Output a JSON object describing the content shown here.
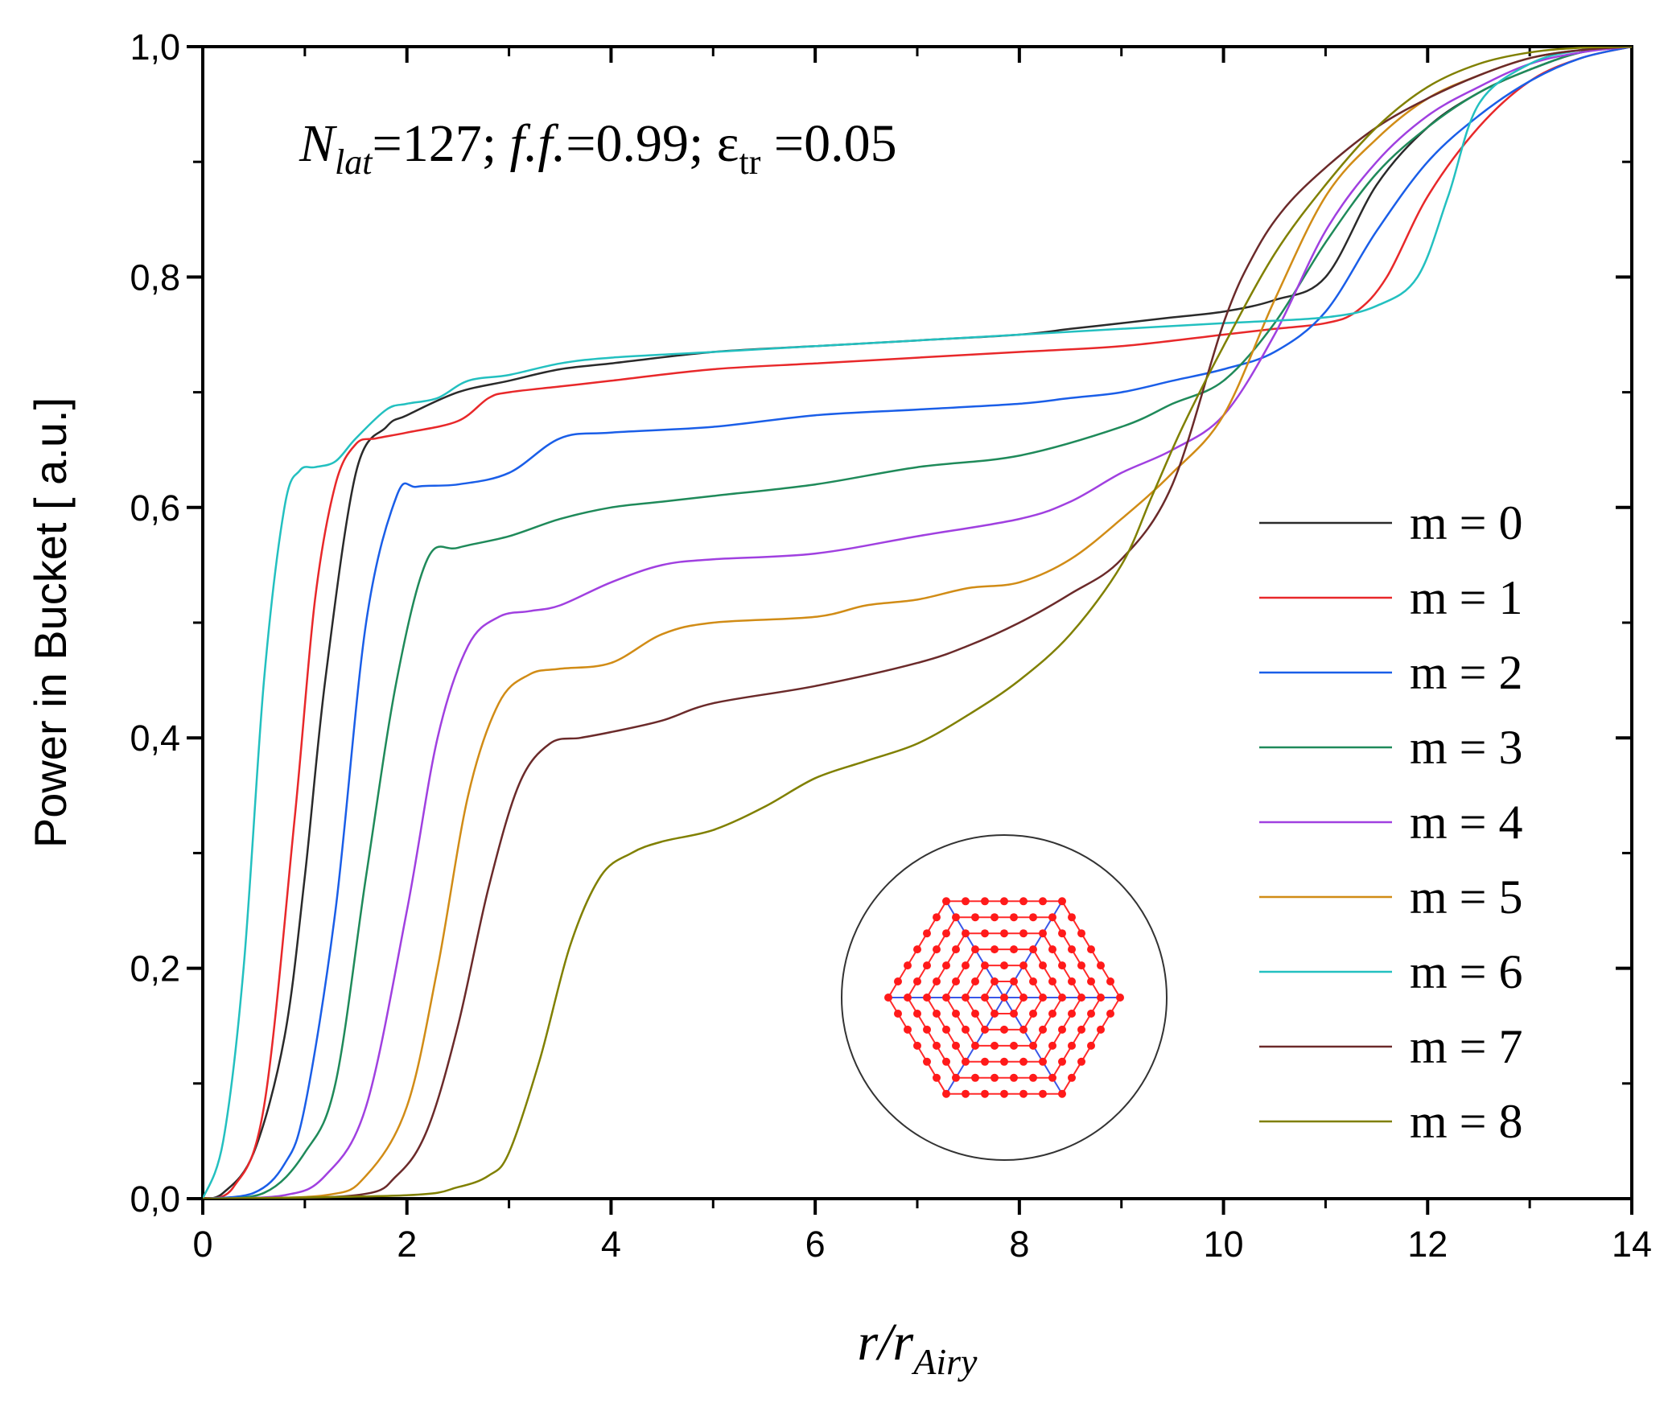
{
  "chart_data": {
    "type": "line",
    "annotation": {
      "n_prefix": "N",
      "n_sub": "lat",
      "n_value": "=127; ",
      "ff_label": "f.f.",
      "ff_value": "=0.99; ",
      "eps_symbol": "ε",
      "eps_sub": "tr",
      "eps_value": " =0.05"
    },
    "xlabel": {
      "main": "r/r",
      "sub": "Airy"
    },
    "ylabel": "Power in Bucket [ a.u.]",
    "xlim": [
      0,
      14
    ],
    "ylim": [
      0,
      1.0
    ],
    "x_ticks": [
      0,
      2,
      4,
      6,
      8,
      10,
      12,
      14
    ],
    "x_tick_labels": [
      "0",
      "2",
      "4",
      "6",
      "8",
      "10",
      "12",
      "14"
    ],
    "y_ticks": [
      0,
      0.2,
      0.4,
      0.6,
      0.8,
      1.0
    ],
    "y_tick_labels": [
      "0,0",
      "0,2",
      "0,4",
      "0,6",
      "0,8",
      "1,0"
    ],
    "legend_position": "right",
    "series": [
      {
        "name": "m = 0",
        "color": "#2a2a2a",
        "x": [
          0,
          0.2,
          0.5,
          0.8,
          1.0,
          1.2,
          1.5,
          1.8,
          2.0,
          2.5,
          3.0,
          3.5,
          4.0,
          5.0,
          6.0,
          7.0,
          8.0,
          8.5,
          9.0,
          9.5,
          10.0,
          10.5,
          11.0,
          11.5,
          12.0,
          12.5,
          13.0,
          13.5,
          14.0
        ],
        "y": [
          0,
          0.005,
          0.04,
          0.14,
          0.28,
          0.45,
          0.63,
          0.67,
          0.68,
          0.7,
          0.71,
          0.72,
          0.725,
          0.735,
          0.74,
          0.745,
          0.75,
          0.755,
          0.76,
          0.765,
          0.77,
          0.78,
          0.8,
          0.88,
          0.93,
          0.96,
          0.98,
          0.995,
          1.0
        ]
      },
      {
        "name": "m = 1",
        "color": "#e8282a",
        "x": [
          0,
          0.3,
          0.6,
          0.9,
          1.1,
          1.3,
          1.5,
          1.7,
          2.0,
          2.5,
          2.8,
          3.0,
          3.5,
          4.0,
          5.0,
          6.0,
          7.0,
          8.0,
          9.0,
          10.0,
          10.5,
          11.0,
          11.3,
          11.6,
          12.0,
          12.5,
          13.0,
          13.5,
          14.0
        ],
        "y": [
          0,
          0.01,
          0.08,
          0.33,
          0.52,
          0.62,
          0.655,
          0.66,
          0.665,
          0.675,
          0.695,
          0.7,
          0.705,
          0.71,
          0.72,
          0.725,
          0.73,
          0.735,
          0.74,
          0.75,
          0.755,
          0.76,
          0.77,
          0.8,
          0.87,
          0.93,
          0.97,
          0.99,
          1.0
        ]
      },
      {
        "name": "m = 2",
        "color": "#1a5ee8",
        "x": [
          0,
          0.5,
          0.8,
          1.0,
          1.3,
          1.6,
          1.9,
          2.1,
          2.5,
          3.0,
          3.5,
          4.0,
          5.0,
          6.0,
          7.0,
          8.0,
          8.5,
          9.0,
          9.5,
          10.0,
          10.5,
          11.0,
          11.5,
          12.0,
          12.5,
          13.0,
          13.5,
          14.0
        ],
        "y": [
          0,
          0.005,
          0.03,
          0.08,
          0.25,
          0.5,
          0.61,
          0.618,
          0.62,
          0.63,
          0.66,
          0.665,
          0.67,
          0.68,
          0.685,
          0.69,
          0.695,
          0.7,
          0.71,
          0.72,
          0.735,
          0.77,
          0.84,
          0.9,
          0.94,
          0.97,
          0.99,
          1.0
        ]
      },
      {
        "name": "m = 3",
        "color": "#1f8a5a",
        "x": [
          0,
          0.6,
          1.0,
          1.3,
          1.6,
          1.9,
          2.2,
          2.5,
          3.0,
          3.5,
          4.0,
          4.5,
          5.0,
          6.0,
          7.0,
          8.0,
          9.0,
          9.5,
          10.0,
          10.5,
          11.0,
          11.5,
          12.0,
          12.5,
          13.0,
          13.5,
          14.0
        ],
        "y": [
          0,
          0.005,
          0.04,
          0.1,
          0.28,
          0.45,
          0.555,
          0.565,
          0.575,
          0.59,
          0.6,
          0.605,
          0.61,
          0.62,
          0.635,
          0.645,
          0.67,
          0.69,
          0.71,
          0.76,
          0.83,
          0.89,
          0.93,
          0.96,
          0.98,
          0.995,
          1.0
        ]
      },
      {
        "name": "m = 4",
        "color": "#a040e0",
        "x": [
          0,
          0.8,
          1.2,
          1.6,
          2.0,
          2.3,
          2.6,
          2.9,
          3.2,
          3.5,
          4.0,
          4.5,
          5.0,
          6.0,
          7.0,
          8.0,
          8.5,
          9.0,
          9.5,
          10.0,
          10.5,
          11.0,
          11.5,
          12.0,
          12.5,
          13.0,
          13.5,
          14.0
        ],
        "y": [
          0,
          0.003,
          0.02,
          0.08,
          0.25,
          0.4,
          0.48,
          0.505,
          0.51,
          0.515,
          0.535,
          0.55,
          0.555,
          0.56,
          0.575,
          0.59,
          0.605,
          0.63,
          0.65,
          0.68,
          0.75,
          0.84,
          0.9,
          0.94,
          0.965,
          0.985,
          0.995,
          1.0
        ]
      },
      {
        "name": "m = 5",
        "color": "#d18c16",
        "x": [
          0,
          1.2,
          1.6,
          2.0,
          2.3,
          2.6,
          2.9,
          3.2,
          3.5,
          4.0,
          4.5,
          5.0,
          6.0,
          6.5,
          7.0,
          7.5,
          8.0,
          8.5,
          9.0,
          9.5,
          10.0,
          10.5,
          11.0,
          11.5,
          12.0,
          12.5,
          13.0,
          13.5,
          14.0
        ],
        "y": [
          0,
          0.003,
          0.02,
          0.08,
          0.2,
          0.35,
          0.43,
          0.455,
          0.46,
          0.465,
          0.49,
          0.5,
          0.505,
          0.515,
          0.52,
          0.53,
          0.535,
          0.555,
          0.59,
          0.63,
          0.68,
          0.78,
          0.87,
          0.92,
          0.955,
          0.975,
          0.99,
          0.997,
          1.0
        ]
      },
      {
        "name": "m = 6",
        "color": "#23c0c0",
        "x": [
          0,
          0.2,
          0.4,
          0.6,
          0.8,
          0.95,
          1.1,
          1.3,
          1.5,
          1.8,
          2.0,
          2.3,
          2.6,
          3.0,
          3.5,
          4.0,
          5.0,
          6.0,
          7.0,
          8.0,
          9.0,
          10.0,
          11.0,
          11.5,
          11.9,
          12.2,
          12.5,
          13.0,
          13.5,
          14.0
        ],
        "y": [
          0,
          0.05,
          0.2,
          0.45,
          0.6,
          0.632,
          0.635,
          0.64,
          0.66,
          0.685,
          0.69,
          0.695,
          0.71,
          0.715,
          0.725,
          0.73,
          0.735,
          0.74,
          0.745,
          0.75,
          0.755,
          0.76,
          0.765,
          0.775,
          0.8,
          0.87,
          0.95,
          0.985,
          0.997,
          1.0
        ]
      },
      {
        "name": "m = 7",
        "color": "#6b2a2a",
        "x": [
          0,
          1.5,
          1.9,
          2.2,
          2.5,
          2.8,
          3.1,
          3.4,
          3.7,
          4.0,
          4.5,
          5.0,
          6.0,
          7.0,
          7.5,
          8.0,
          8.5,
          9.0,
          9.5,
          10.0,
          10.3,
          10.6,
          11.0,
          11.5,
          12.0,
          12.5,
          13.0,
          13.5,
          14.0
        ],
        "y": [
          0,
          0.003,
          0.02,
          0.06,
          0.15,
          0.27,
          0.36,
          0.395,
          0.4,
          0.405,
          0.415,
          0.43,
          0.445,
          0.465,
          0.48,
          0.5,
          0.525,
          0.555,
          0.62,
          0.76,
          0.82,
          0.86,
          0.895,
          0.93,
          0.955,
          0.975,
          0.99,
          0.997,
          1.0
        ]
      },
      {
        "name": "m = 8",
        "color": "#808000",
        "x": [
          0,
          2.0,
          2.5,
          2.8,
          3.0,
          3.3,
          3.6,
          3.9,
          4.2,
          4.5,
          5.0,
          5.5,
          6.0,
          6.5,
          7.0,
          7.5,
          8.0,
          8.5,
          9.0,
          9.3,
          9.6,
          10.0,
          10.5,
          11.0,
          11.5,
          12.0,
          12.5,
          13.0,
          13.5,
          14.0
        ],
        "y": [
          0,
          0.003,
          0.01,
          0.02,
          0.04,
          0.12,
          0.22,
          0.28,
          0.3,
          0.31,
          0.32,
          0.34,
          0.365,
          0.38,
          0.395,
          0.42,
          0.45,
          0.49,
          0.55,
          0.61,
          0.67,
          0.74,
          0.82,
          0.88,
          0.93,
          0.965,
          0.985,
          0.995,
          0.999,
          1.0
        ]
      }
    ]
  }
}
